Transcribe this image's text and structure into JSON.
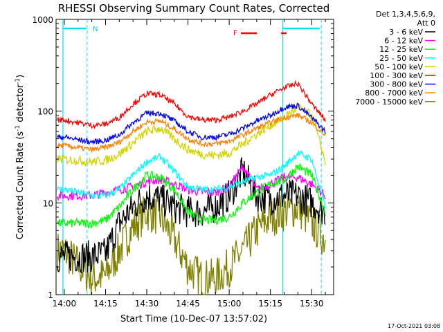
{
  "chart_data": {
    "type": "line",
    "title": "RHESSI Observing Summary Count Rates, Corrected",
    "xlabel": "Start Time (10-Dec-07 13:57:02)",
    "ylabel_main": "Corrected Count Rate (s",
    "ylabel_sup1": "-1",
    "ylabel_mid": " detector",
    "ylabel_sup2": "-1",
    "ylabel_end": ")",
    "yscale": "log",
    "ylim": [
      1,
      1000
    ],
    "xlim": [
      "13:57",
      "15:35"
    ],
    "x_ticks": [
      "14:00",
      "14:15",
      "14:30",
      "14:45",
      "15:00",
      "15:15",
      "15:30"
    ],
    "x_tick_minutes": [
      0,
      15,
      30,
      45,
      60,
      75,
      90
    ],
    "y_ticks": [
      "1",
      "10",
      "100",
      "1000"
    ],
    "grid": false,
    "legend_position": "top-right-outside",
    "legend_header": [
      "Det 1,3,4,5,6,9,",
      "Att 0"
    ],
    "annotations": {
      "night_label": "N",
      "flare_label": "F",
      "footer": "17-Oct-2021 03:08"
    },
    "series": [
      {
        "name": "3 - 6 keV",
        "color": "#000000",
        "values_t": [
          0,
          10,
          15,
          20,
          25,
          30,
          35,
          40,
          45,
          50,
          55,
          60,
          65,
          70,
          75,
          80,
          85,
          90,
          95
        ],
        "values": [
          2.6,
          2.6,
          2.8,
          6,
          9,
          12,
          11,
          9,
          8,
          8,
          9,
          12,
          22,
          12,
          11,
          12,
          12,
          10,
          8
        ]
      },
      {
        "name": "6 - 12 keV",
        "color": "#ff00ff",
        "values_t": [
          0,
          10,
          15,
          20,
          25,
          30,
          35,
          40,
          45,
          50,
          55,
          60,
          65,
          70,
          75,
          80,
          85,
          90,
          95
        ],
        "values": [
          12,
          12,
          13,
          14,
          15,
          17,
          18,
          16,
          14,
          13,
          13,
          15,
          25,
          14,
          16,
          19,
          19,
          16,
          12
        ]
      },
      {
        "name": "12 - 25 keV",
        "color": "#00ff00",
        "values_t": [
          0,
          10,
          15,
          20,
          25,
          30,
          35,
          40,
          45,
          50,
          55,
          60,
          65,
          70,
          75,
          80,
          85,
          90,
          95
        ],
        "values": [
          6,
          6,
          6.5,
          9,
          14,
          20,
          19,
          14,
          8,
          6.5,
          6.5,
          7,
          10,
          13,
          16,
          18,
          25,
          20,
          8
        ]
      },
      {
        "name": "25 - 50 keV",
        "color": "#00ffff",
        "values_t": [
          0,
          10,
          15,
          20,
          25,
          30,
          35,
          40,
          45,
          50,
          55,
          60,
          65,
          70,
          75,
          80,
          85,
          90,
          95
        ],
        "values": [
          14,
          12,
          12,
          14,
          20,
          28,
          32,
          22,
          15,
          14,
          14,
          15,
          17,
          19,
          20,
          25,
          35,
          30,
          9
        ]
      },
      {
        "name": "50 - 100 keV",
        "color": "#d4d400",
        "values_t": [
          0,
          10,
          15,
          20,
          25,
          30,
          35,
          40,
          45,
          50,
          55,
          60,
          65,
          70,
          75,
          80,
          85,
          90,
          95
        ],
        "values": [
          30,
          28,
          29,
          34,
          45,
          60,
          65,
          50,
          38,
          34,
          33,
          35,
          44,
          56,
          70,
          85,
          110,
          90,
          28
        ]
      },
      {
        "name": "100 - 300 keV",
        "color": "#ff0000",
        "values_t": [
          0,
          10,
          15,
          20,
          25,
          30,
          35,
          40,
          45,
          50,
          55,
          60,
          65,
          70,
          75,
          80,
          85,
          90,
          95
        ],
        "values": [
          80,
          70,
          72,
          85,
          120,
          155,
          150,
          120,
          88,
          80,
          80,
          86,
          100,
          120,
          150,
          180,
          200,
          120,
          80
        ]
      },
      {
        "name": "300 - 800 keV",
        "color": "#0000ff",
        "values_t": [
          0,
          10,
          15,
          20,
          25,
          30,
          35,
          40,
          45,
          50,
          55,
          60,
          65,
          70,
          75,
          80,
          85,
          90,
          95
        ],
        "values": [
          52,
          46,
          48,
          55,
          75,
          95,
          95,
          78,
          60,
          52,
          52,
          56,
          65,
          78,
          90,
          110,
          115,
          85,
          60
        ]
      },
      {
        "name": "800 - 7000 keV",
        "color": "#ff8000",
        "values_t": [
          0,
          10,
          15,
          20,
          25,
          30,
          35,
          40,
          45,
          50,
          55,
          60,
          65,
          70,
          75,
          80,
          85,
          90,
          95
        ],
        "values": [
          42,
          38,
          40,
          46,
          60,
          76,
          78,
          64,
          50,
          44,
          44,
          47,
          55,
          65,
          75,
          85,
          90,
          75,
          55
        ]
      },
      {
        "name": "7000 - 15000 keV",
        "color": "#808000",
        "values_t": [
          0,
          10,
          15,
          20,
          25,
          30,
          35,
          40,
          45,
          50,
          55,
          60,
          65,
          70,
          75,
          80,
          85,
          90,
          95
        ],
        "values": [
          3,
          1.5,
          1.6,
          3,
          5.5,
          8,
          7,
          4,
          2,
          1.5,
          1.5,
          2,
          3,
          5,
          7,
          8,
          9,
          6,
          4
        ]
      }
    ]
  }
}
